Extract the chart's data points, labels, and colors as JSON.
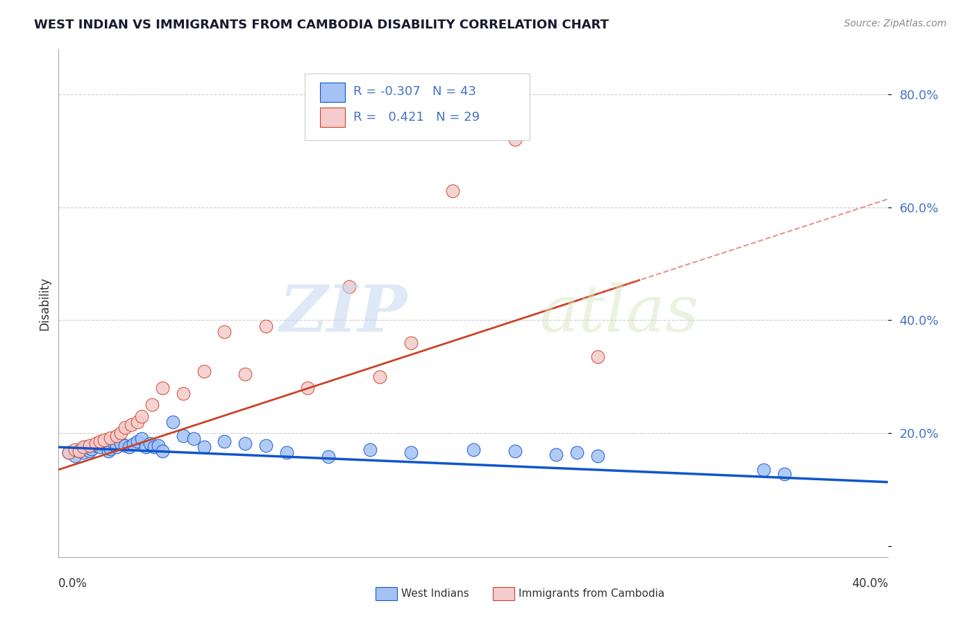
{
  "title": "WEST INDIAN VS IMMIGRANTS FROM CAMBODIA DISABILITY CORRELATION CHART",
  "source": "Source: ZipAtlas.com",
  "ylabel": "Disability",
  "x_lim": [
    0.0,
    0.4
  ],
  "y_lim": [
    -0.02,
    0.88
  ],
  "y_ticks": [
    0.0,
    0.2,
    0.4,
    0.6,
    0.8
  ],
  "y_tick_labels": [
    "",
    "20.0%",
    "40.0%",
    "60.0%",
    "80.0%"
  ],
  "legend_r_blue": "-0.307",
  "legend_n_blue": "43",
  "legend_r_pink": "0.421",
  "legend_n_pink": "29",
  "legend_label_blue": "West Indians",
  "legend_label_pink": "Immigrants from Cambodia",
  "watermark_zip": "ZIP",
  "watermark_atlas": "atlas",
  "blue_scatter_x": [
    0.005,
    0.008,
    0.01,
    0.012,
    0.013,
    0.015,
    0.016,
    0.018,
    0.02,
    0.022,
    0.024,
    0.025,
    0.026,
    0.028,
    0.03,
    0.032,
    0.034,
    0.036,
    0.038,
    0.04,
    0.042,
    0.044,
    0.046,
    0.048,
    0.05,
    0.055,
    0.06,
    0.065,
    0.07,
    0.08,
    0.09,
    0.1,
    0.11,
    0.13,
    0.15,
    0.17,
    0.2,
    0.22,
    0.24,
    0.25,
    0.26,
    0.34,
    0.35
  ],
  "blue_scatter_y": [
    0.165,
    0.16,
    0.17,
    0.165,
    0.175,
    0.168,
    0.172,
    0.178,
    0.175,
    0.18,
    0.168,
    0.172,
    0.185,
    0.176,
    0.182,
    0.178,
    0.175,
    0.18,
    0.185,
    0.19,
    0.176,
    0.182,
    0.175,
    0.178,
    0.168,
    0.22,
    0.195,
    0.19,
    0.175,
    0.185,
    0.182,
    0.178,
    0.165,
    0.158,
    0.17,
    0.165,
    0.17,
    0.168,
    0.162,
    0.165,
    0.16,
    0.135,
    0.128
  ],
  "pink_scatter_x": [
    0.005,
    0.008,
    0.01,
    0.012,
    0.015,
    0.018,
    0.02,
    0.022,
    0.025,
    0.028,
    0.03,
    0.032,
    0.035,
    0.038,
    0.04,
    0.045,
    0.05,
    0.06,
    0.07,
    0.08,
    0.09,
    0.1,
    0.12,
    0.14,
    0.155,
    0.17,
    0.19,
    0.22,
    0.26
  ],
  "pink_scatter_y": [
    0.165,
    0.17,
    0.168,
    0.175,
    0.178,
    0.182,
    0.185,
    0.188,
    0.192,
    0.195,
    0.2,
    0.21,
    0.215,
    0.22,
    0.23,
    0.25,
    0.28,
    0.27,
    0.31,
    0.38,
    0.305,
    0.39,
    0.28,
    0.46,
    0.3,
    0.36,
    0.63,
    0.72,
    0.335
  ],
  "blue_color": "#a4c2f4",
  "pink_color": "#f4cccc",
  "blue_line_color": "#1155cc",
  "pink_line_color": "#cc4125",
  "pink_dash_color": "#e06666",
  "grid_color": "#cccccc",
  "bg_color": "#ffffff",
  "blue_intercept": 0.175,
  "blue_slope": -0.155,
  "pink_intercept": 0.135,
  "pink_slope": 1.2
}
